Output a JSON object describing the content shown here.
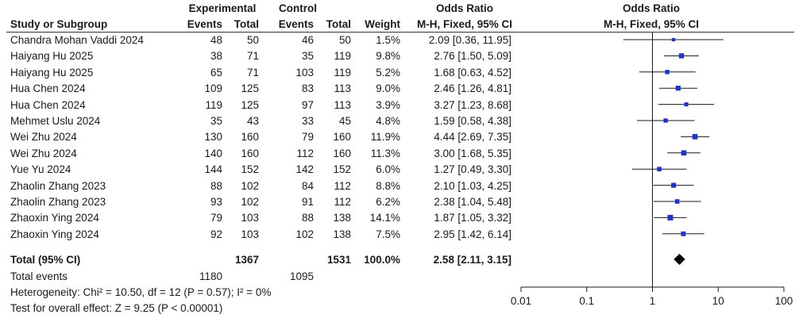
{
  "header": {
    "group1": "Experimental",
    "group2": "Control",
    "col_study": "Study or Subgroup",
    "col_events": "Events",
    "col_total": "Total",
    "col_weight": "Weight",
    "or_header_left": "Odds Ratio",
    "or_method_left": "M-H, Fixed, 95% CI",
    "or_header_right": "Odds Ratio",
    "or_method_right": "M-H, Fixed, 95% CI"
  },
  "studies": [
    {
      "name": "Chandra Mohan Vaddi 2024",
      "e_events": "48",
      "e_total": "50",
      "c_events": "46",
      "c_total": "50",
      "weight": "1.5%",
      "ci_text": "2.09 [0.36, 11.95]"
    },
    {
      "name": "Haiyang Hu 2025",
      "e_events": "38",
      "e_total": "71",
      "c_events": "35",
      "c_total": "119",
      "weight": "9.8%",
      "ci_text": "2.76 [1.50, 5.09]"
    },
    {
      "name": "Haiyang Hu 2025",
      "e_events": "65",
      "e_total": "71",
      "c_events": "103",
      "c_total": "119",
      "weight": "5.2%",
      "ci_text": "1.68 [0.63, 4.52]"
    },
    {
      "name": "Hua Chen 2024",
      "e_events": "109",
      "e_total": "125",
      "c_events": "83",
      "c_total": "113",
      "weight": "9.0%",
      "ci_text": "2.46 [1.26, 4.81]"
    },
    {
      "name": "Hua Chen 2024",
      "e_events": "119",
      "e_total": "125",
      "c_events": "97",
      "c_total": "113",
      "weight": "3.9%",
      "ci_text": "3.27 [1.23, 8.68]"
    },
    {
      "name": "Mehmet Uslu 2024",
      "e_events": "35",
      "e_total": "43",
      "c_events": "33",
      "c_total": "45",
      "weight": "4.8%",
      "ci_text": "1.59 [0.58, 4.38]"
    },
    {
      "name": "Wei Zhu 2024",
      "e_events": "130",
      "e_total": "160",
      "c_events": "79",
      "c_total": "160",
      "weight": "11.9%",
      "ci_text": "4.44 [2.69, 7.35]"
    },
    {
      "name": "Wei Zhu 2024",
      "e_events": "140",
      "e_total": "160",
      "c_events": "112",
      "c_total": "160",
      "weight": "11.3%",
      "ci_text": "3.00 [1.68, 5.35]"
    },
    {
      "name": "Yue Yu 2024",
      "e_events": "144",
      "e_total": "152",
      "c_events": "142",
      "c_total": "152",
      "weight": "6.0%",
      "ci_text": "1.27 [0.49, 3.30]"
    },
    {
      "name": "Zhaolin Zhang 2023",
      "e_events": "88",
      "e_total": "102",
      "c_events": "84",
      "c_total": "112",
      "weight": "8.8%",
      "ci_text": "2.10 [1.03, 4.25]"
    },
    {
      "name": "Zhaolin Zhang 2023",
      "e_events": "93",
      "e_total": "102",
      "c_events": "91",
      "c_total": "112",
      "weight": "6.2%",
      "ci_text": "2.38 [1.04, 5.48]"
    },
    {
      "name": "Zhaoxin Ying 2024",
      "e_events": "79",
      "e_total": "103",
      "c_events": "88",
      "c_total": "138",
      "weight": "14.1%",
      "ci_text": "1.87 [1.05, 3.32]"
    },
    {
      "name": "Zhaoxin Ying 2024",
      "e_events": "92",
      "e_total": "103",
      "c_events": "102",
      "c_total": "138",
      "weight": "7.5%",
      "ci_text": "2.95 [1.42, 6.14]"
    }
  ],
  "total": {
    "label": "Total (95% CI)",
    "e_total": "1367",
    "c_total": "1531",
    "weight": "100.0%",
    "ci_text": "2.58 [2.11, 3.15]"
  },
  "total_events": {
    "label": "Total events",
    "e_events": "1180",
    "c_events": "1095"
  },
  "heterogeneity": "Heterogeneity: Chi² = 10.50, df = 12 (P = 0.57); I² = 0%",
  "overall_effect": "Test for overall effect: Z = 9.25 (P < 0.00001)",
  "colors": {
    "marker": "#1f35c8",
    "line": "#1a1a1a",
    "diamond": "#000000"
  },
  "chart_data": {
    "type": "forest",
    "x_scale": "log",
    "xlim": [
      0.01,
      100
    ],
    "x_ticks": [
      0.01,
      0.1,
      1,
      10,
      100
    ],
    "x_tick_labels": [
      "0.01",
      "0.1",
      "1",
      "10",
      "100"
    ],
    "null_line": 1,
    "points": [
      {
        "or": 2.09,
        "lo": 0.36,
        "hi": 11.95,
        "weight": 1.5
      },
      {
        "or": 2.76,
        "lo": 1.5,
        "hi": 5.09,
        "weight": 9.8
      },
      {
        "or": 1.68,
        "lo": 0.63,
        "hi": 4.52,
        "weight": 5.2
      },
      {
        "or": 2.46,
        "lo": 1.26,
        "hi": 4.81,
        "weight": 9.0
      },
      {
        "or": 3.27,
        "lo": 1.23,
        "hi": 8.68,
        "weight": 3.9
      },
      {
        "or": 1.59,
        "lo": 0.58,
        "hi": 4.38,
        "weight": 4.8
      },
      {
        "or": 4.44,
        "lo": 2.69,
        "hi": 7.35,
        "weight": 11.9
      },
      {
        "or": 3.0,
        "lo": 1.68,
        "hi": 5.35,
        "weight": 11.3
      },
      {
        "or": 1.27,
        "lo": 0.49,
        "hi": 3.3,
        "weight": 6.0
      },
      {
        "or": 2.1,
        "lo": 1.03,
        "hi": 4.25,
        "weight": 8.8
      },
      {
        "or": 2.38,
        "lo": 1.04,
        "hi": 5.48,
        "weight": 6.2
      },
      {
        "or": 1.87,
        "lo": 1.05,
        "hi": 3.32,
        "weight": 14.1
      },
      {
        "or": 2.95,
        "lo": 1.42,
        "hi": 6.14,
        "weight": 7.5
      }
    ],
    "pooled": {
      "or": 2.58,
      "lo": 2.11,
      "hi": 3.15
    }
  }
}
